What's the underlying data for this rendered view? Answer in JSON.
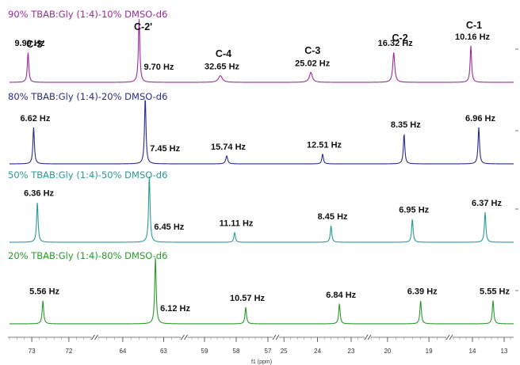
{
  "chart_data": {
    "type": "line",
    "xlabel": "f1 (ppm)",
    "x_axis_reversed": true,
    "axis_segments": [
      {
        "range": [
          73.6,
          71.4
        ],
        "ticks": [
          "73",
          "72"
        ],
        "tick_values": [
          73,
          72
        ]
      },
      {
        "range": [
          64.6,
          62.6
        ],
        "ticks": [
          "64",
          "63"
        ],
        "tick_values": [
          64,
          63
        ]
      },
      {
        "range": [
          59.5,
          56.9
        ],
        "ticks": [
          "59",
          "58",
          "57"
        ],
        "tick_values": [
          59,
          58,
          57
        ]
      },
      {
        "range": [
          25.1,
          22.6
        ],
        "ticks": [
          "25",
          "24",
          "23"
        ],
        "tick_values": [
          25,
          24,
          23
        ]
      },
      {
        "range": [
          20.4,
          18.6
        ],
        "ticks": [
          "20",
          "19"
        ],
        "tick_values": [
          20,
          19
        ]
      },
      {
        "range": [
          14.6,
          12.7
        ],
        "ticks": [
          "14",
          "13"
        ],
        "tick_values": [
          14,
          13
        ]
      }
    ],
    "carbon_labels": [
      {
        "label": "C-3'",
        "x": 72.9
      },
      {
        "label": "C-2'",
        "x": 63.5
      },
      {
        "label": "C-4",
        "x": 58.4
      },
      {
        "label": "C-3",
        "x": 24.15
      },
      {
        "label": "C-2",
        "x": 19.7
      },
      {
        "label": "C-1",
        "x": 13.95
      }
    ],
    "series": [
      {
        "name": "90% TBAB:Gly (1:4)-10% DMSO-d6",
        "color": "#9c2a9c",
        "peaks": [
          {
            "x": 73.1,
            "height": 0.45,
            "width_hz": "9.99 Hz"
          },
          {
            "x": 63.6,
            "height": 0.95,
            "width_hz": "9.70 Hz"
          },
          {
            "x": 58.5,
            "height": 0.1,
            "width_hz": "32.65 Hz"
          },
          {
            "x": 24.2,
            "height": 0.15,
            "width_hz": "25.02 Hz"
          },
          {
            "x": 19.85,
            "height": 0.45,
            "width_hz": "16.32 Hz"
          },
          {
            "x": 14.05,
            "height": 0.55,
            "width_hz": "10.16 Hz"
          }
        ]
      },
      {
        "name": "80% TBAB:Gly (1:4)-20% DMSO-d6",
        "color": "#2a2a8c",
        "peaks": [
          {
            "x": 72.95,
            "height": 0.55,
            "width_hz": "6.62 Hz"
          },
          {
            "x": 63.45,
            "height": 1.0,
            "width_hz": "7.45 Hz"
          },
          {
            "x": 58.3,
            "height": 0.12,
            "width_hz": "15.74 Hz"
          },
          {
            "x": 23.85,
            "height": 0.15,
            "width_hz": "12.51 Hz"
          },
          {
            "x": 19.6,
            "height": 0.45,
            "width_hz": "8.35 Hz"
          },
          {
            "x": 13.8,
            "height": 0.55,
            "width_hz": "6.96 Hz"
          }
        ]
      },
      {
        "name": "50% TBAB:Gly (1:4)-50% DMSO-d6",
        "color": "#2a9a96",
        "peaks": [
          {
            "x": 72.85,
            "height": 0.6,
            "width_hz": "6.36 Hz"
          },
          {
            "x": 63.35,
            "height": 1.0,
            "width_hz": "6.45 Hz"
          },
          {
            "x": 58.05,
            "height": 0.15,
            "width_hz": "11.11 Hz"
          },
          {
            "x": 23.6,
            "height": 0.25,
            "width_hz": "8.45 Hz"
          },
          {
            "x": 19.4,
            "height": 0.35,
            "width_hz": "6.95 Hz"
          },
          {
            "x": 13.6,
            "height": 0.45,
            "width_hz": "6.37 Hz"
          }
        ]
      },
      {
        "name": "20% TBAB:Gly (1:4)-80% DMSO-d6",
        "color": "#2a9a2a",
        "peaks": [
          {
            "x": 72.7,
            "height": 0.35,
            "width_hz": "5.56 Hz"
          },
          {
            "x": 63.2,
            "height": 1.0,
            "width_hz": "6.12 Hz"
          },
          {
            "x": 57.7,
            "height": 0.25,
            "width_hz": "10.57 Hz"
          },
          {
            "x": 23.35,
            "height": 0.3,
            "width_hz": "6.84 Hz"
          },
          {
            "x": 19.2,
            "height": 0.35,
            "width_hz": "6.39 Hz"
          },
          {
            "x": 13.35,
            "height": 0.35,
            "width_hz": "5.55 Hz"
          }
        ]
      }
    ]
  }
}
